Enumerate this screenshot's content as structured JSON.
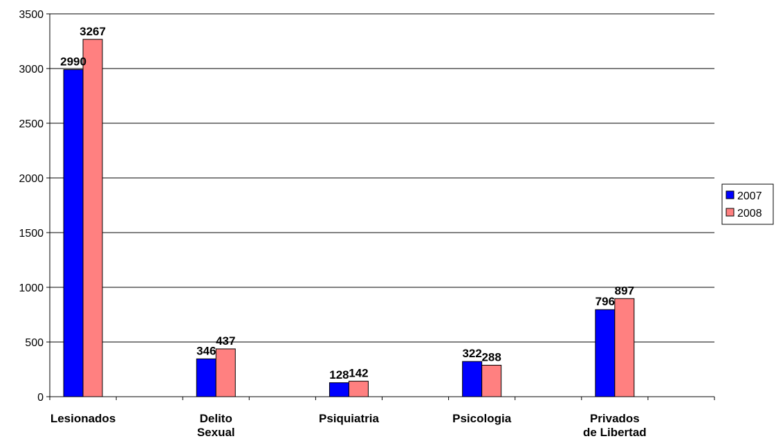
{
  "chart_data": {
    "type": "bar",
    "categories": [
      [
        "Lesionados"
      ],
      [
        "Delito",
        "Sexual"
      ],
      [
        "Psiquiatria"
      ],
      [
        "Psicologia"
      ],
      [
        "Privados",
        "de Libertad"
      ]
    ],
    "series": [
      {
        "name": "2007",
        "values": [
          2990,
          346,
          128,
          322,
          796
        ],
        "color": "#0000FF"
      },
      {
        "name": "2008",
        "values": [
          3267,
          437,
          142,
          288,
          897
        ],
        "color": "#FF8080"
      }
    ],
    "yticks": [
      "0",
      "500",
      "1000",
      "1500",
      "2000",
      "2500",
      "3000",
      "3500"
    ],
    "ylim": [
      0,
      3500
    ],
    "grid": true,
    "legend_position": "right",
    "title": "",
    "xlabel": "",
    "ylabel": ""
  }
}
